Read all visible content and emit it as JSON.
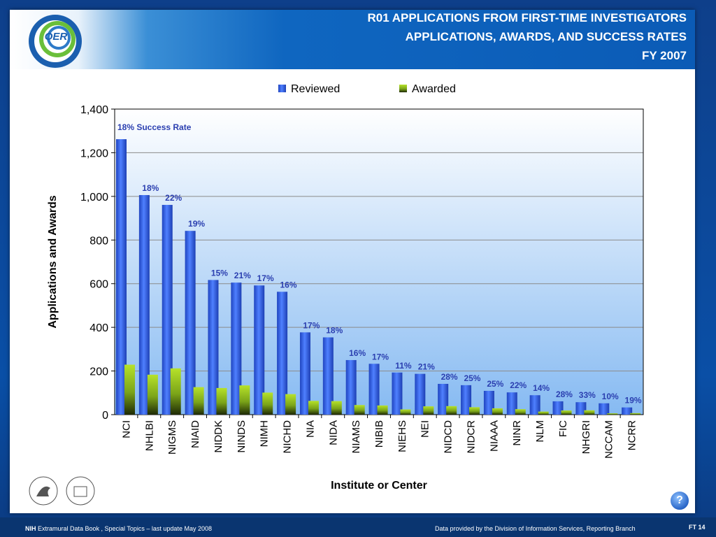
{
  "header": {
    "title_lines": [
      "R01 APPLICATIONS FROM FIRST-TIME INVESTIGATORS",
      "APPLICATIONS, AWARDS, AND SUCCESS RATES",
      "FY 2007"
    ],
    "logo_text": "OER"
  },
  "chart_data": {
    "type": "bar",
    "title": "",
    "xlabel": "Institute or Center",
    "ylabel": "Applications and Awards",
    "ylim": [
      0,
      1400
    ],
    "yticks": [
      "0",
      "200",
      "400",
      "600",
      "800",
      "1,000",
      "1,200",
      "1,400"
    ],
    "grid": true,
    "legend_position": "top-center",
    "categories": [
      "NCI",
      "NHLBI",
      "NIGMS",
      "NIAID",
      "NIDDK",
      "NINDS",
      "NIMH",
      "NICHD",
      "NIA",
      "NIDA",
      "NIAMS",
      "NIBIB",
      "NIEHS",
      "NEI",
      "NIDCD",
      "NIDCR",
      "NIAAA",
      "NINR",
      "NLM",
      "FIC",
      "NHGRI",
      "NCCAM",
      "NCRR"
    ],
    "series": [
      {
        "name": "Reviewed",
        "color": "#2f5fe0",
        "values": [
          1262,
          1006,
          961,
          842,
          617,
          605,
          592,
          563,
          377,
          354,
          250,
          233,
          193,
          187,
          141,
          135,
          109,
          102,
          89,
          61,
          57,
          52,
          33
        ]
      },
      {
        "name": "Awarded",
        "color": "#9acd1e",
        "values": [
          229,
          183,
          212,
          126,
          122,
          134,
          101,
          94,
          63,
          62,
          44,
          42,
          24,
          38,
          39,
          34,
          29,
          25,
          14,
          19,
          20,
          6,
          7
        ]
      }
    ],
    "annotations": [
      "18% Success Rate",
      "18%",
      "22%",
      "19%",
      "15%",
      "21%",
      "17%",
      "16%",
      "17%",
      "18%",
      "16%",
      "17%",
      "11%",
      "21%",
      "28%",
      "25%",
      "25%",
      "22%",
      "14%",
      "28%",
      "33%",
      "10%",
      "19%"
    ]
  },
  "footer": {
    "left_bold": "NIH",
    "left_text": " Extramural Data Book , Special Topics – last update May 2008",
    "center_text": "Data provided by the Division of Information Services, Reporting Branch",
    "right_text": "FT 14",
    "help_label": "?"
  }
}
